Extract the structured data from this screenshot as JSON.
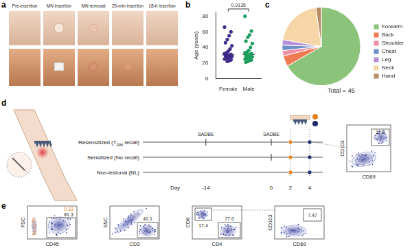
{
  "panel_a": {
    "label": "a",
    "stages": [
      "Pre-insertion",
      "MN insertion",
      "MN removal",
      "20-min insertion",
      "18-h insertion"
    ]
  },
  "chart_data": [
    {
      "panel": "b",
      "type": "scatter",
      "categories": [
        "Female",
        "Male"
      ],
      "values": [
        [
          66,
          60,
          55,
          50,
          46,
          42,
          38,
          35,
          33,
          32,
          31,
          30,
          30,
          29,
          28,
          28,
          27,
          26,
          25,
          24,
          23,
          22
        ],
        [
          80,
          61,
          56,
          53,
          48,
          45,
          40,
          36,
          34,
          33,
          32,
          31,
          30,
          29,
          28,
          28,
          27,
          26,
          25,
          24,
          23,
          22,
          21
        ]
      ],
      "colors": [
        "#3d2a8c",
        "#1b9e5e"
      ],
      "y_label": "Age (years)",
      "ylim": [
        0,
        85
      ],
      "yticks": [
        0,
        20,
        40,
        60,
        80
      ],
      "grid": false,
      "annotations": [
        "0.9135"
      ]
    },
    {
      "panel": "c",
      "type": "pie",
      "categories": [
        "Forearm",
        "Back",
        "Shoulder",
        "Chest",
        "Leg",
        "Neck",
        "Hand"
      ],
      "values": [
        30,
        2,
        1,
        1,
        1,
        9,
        1
      ],
      "colors": [
        "#8cc37a",
        "#f07b52",
        "#ef8fa6",
        "#6f8fc8",
        "#b48fd8",
        "#f6d6a6",
        "#b88c63"
      ],
      "legend": "right",
      "annotations": [
        "Total = 45"
      ]
    }
  ],
  "panel_d": {
    "label": "d",
    "sensitizer": "SADBE",
    "groups": [
      {
        "label": [
          "Resensitized (T",
          "RM",
          " recall)"
        ],
        "sensitized_days": [
          -14,
          0
        ]
      },
      {
        "label": [
          "Sensitized (No recall)"
        ],
        "sensitized_days": [
          0
        ]
      },
      {
        "label": [
          "Non-lesional (NL)"
        ]
      }
    ],
    "day_label": "Day",
    "days": [
      -14,
      0,
      2,
      4
    ],
    "sample_days": [
      2,
      4
    ],
    "sample_colors": [
      "#e8821e",
      "#1f2a6b"
    ],
    "inset": {
      "x": "CD69",
      "y": "CD103",
      "gates": [
        "17.8"
      ]
    }
  },
  "panel_e": {
    "label": "e",
    "plots": [
      {
        "x": "CD45",
        "y": "FSC",
        "gates": [
          "0.33",
          "81.3"
        ]
      },
      {
        "x": "CD3",
        "y": "SSC",
        "gates": [
          "41.1"
        ]
      },
      {
        "x": "CD4",
        "y": "CD8",
        "gates": [
          "17.4",
          "77.0"
        ]
      },
      {
        "x": "CD69",
        "y": "CD103",
        "gates": [
          "7.47"
        ]
      }
    ]
  }
}
